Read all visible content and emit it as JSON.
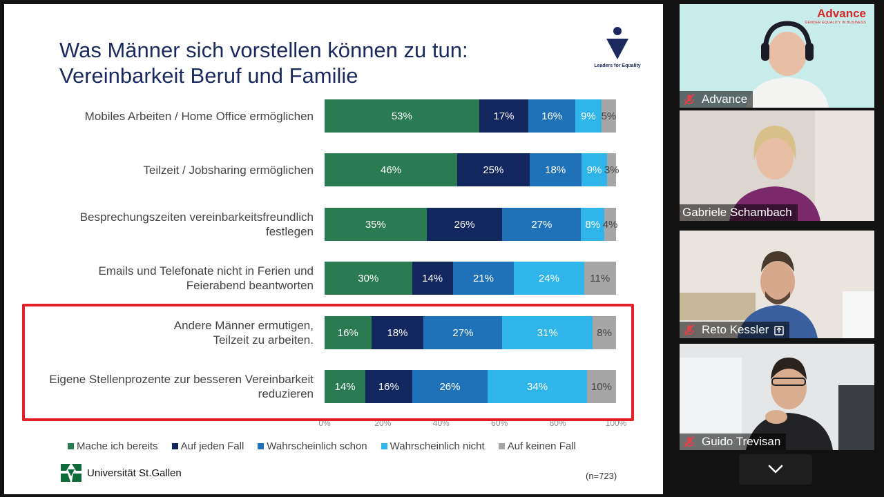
{
  "slide": {
    "title_line1": "Was Männer sich vorstellen können zu tun:",
    "title_line2": "Vereinbarkeit Beruf und Familie",
    "logo_text": "Leaders for Equality",
    "university": "Universität St.Gallen",
    "sample": "(n=723)"
  },
  "chart_data": {
    "type": "bar",
    "orientation": "horizontal-stacked-100",
    "categories": [
      "Mobiles Arbeiten / Home Office ermöglichen",
      "Teilzeit / Jobsharing ermöglichen",
      "Besprechungszeiten vereinbarkeitsfreundlich festlegen",
      "Emails und Telefonate nicht in Ferien und Feierabend beantworten",
      "Andere Männer ermutigen, Teilzeit zu arbeiten.",
      "Eigene Stellenprozente zur besseren Vereinbarkeit reduzieren"
    ],
    "category_lines": [
      [
        "Mobiles Arbeiten / Home Office ermöglichen"
      ],
      [
        "Teilzeit / Jobsharing ermöglichen"
      ],
      [
        "Besprechungszeiten vereinbarkeitsfreundlich",
        "festlegen"
      ],
      [
        "Emails und Telefonate nicht in Ferien und",
        "Feierabend beantworten"
      ],
      [
        "Andere Männer ermutigen,",
        "Teilzeit zu arbeiten."
      ],
      [
        "Eigene Stellenprozente zur besseren Vereinbarkeit",
        "reduzieren"
      ]
    ],
    "series": [
      {
        "name": "Mache ich bereits",
        "color": "#2a7a52",
        "values": [
          53,
          46,
          35,
          30,
          16,
          14
        ]
      },
      {
        "name": "Auf jeden Fall",
        "color": "#12275e",
        "values": [
          17,
          25,
          26,
          14,
          18,
          16
        ]
      },
      {
        "name": "Wahrscheinlich schon",
        "color": "#1f72b8",
        "values": [
          16,
          18,
          27,
          21,
          27,
          26
        ]
      },
      {
        "name": "Wahrscheinlich nicht",
        "color": "#2fb5ea",
        "values": [
          9,
          9,
          8,
          24,
          31,
          34
        ]
      },
      {
        "name": "Auf keinen Fall",
        "color": "#a6a6a6",
        "values": [
          5,
          3,
          4,
          11,
          8,
          10
        ]
      }
    ],
    "x_ticks": [
      "0%",
      "20%",
      "40%",
      "60%",
      "80%",
      "100%"
    ],
    "xlim": [
      0,
      100
    ],
    "legend_position": "bottom",
    "highlighted_categories": [
      4,
      5
    ]
  },
  "participants": [
    {
      "name": "Advance",
      "muted": true,
      "active": false,
      "logo_brand": "Advance",
      "logo_tag": "GENDER EQUALITY IN BUSINESS"
    },
    {
      "name": "Gabriele Schambach",
      "muted": false,
      "active": true
    },
    {
      "name": "Reto Kessler",
      "muted": true,
      "active": false
    },
    {
      "name": "Guido Trevisan",
      "muted": true,
      "active": false
    }
  ],
  "icons": {
    "mic_off": "mic-off-icon",
    "expand": "chevron-down-icon",
    "share": "share-screen-icon"
  }
}
